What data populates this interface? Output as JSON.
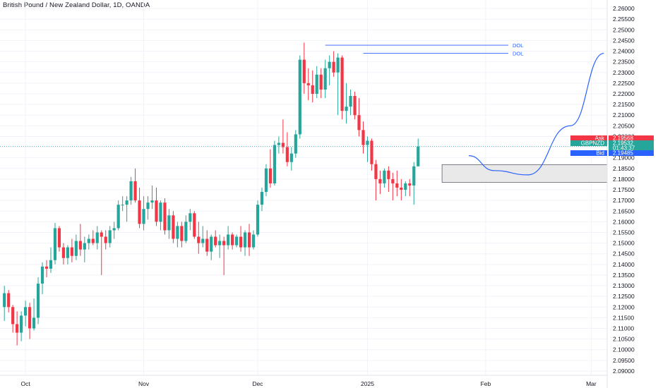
{
  "header": {
    "title": "British Pound / New Zealand Dollar, 1D, OANDA"
  },
  "colors": {
    "up": "#26a69a",
    "down": "#f23645",
    "line": "#2962ff",
    "grid": "#f0f3fa",
    "zone_fill": "#e9e9ea",
    "zone_stroke": "#5d606b",
    "price_line": "#26a69a"
  },
  "annotations": {
    "dol_1": {
      "label": "DOL",
      "price": 2.2428
    },
    "dol_2": {
      "label": "DOL",
      "price": 2.239
    },
    "zone": {
      "top": 2.1868,
      "bottom": 2.1785
    },
    "projection_label": "curve down then up"
  },
  "price_tags": {
    "ask": {
      "label": "Ask",
      "value": "2.19568"
    },
    "symbol": {
      "label": "GBPNZD",
      "value": "2.19532"
    },
    "countdown": {
      "value": "01:43:37"
    },
    "bid": {
      "label": "Bid",
      "value": "2.19485"
    }
  },
  "chart_data": {
    "type": "candlestick",
    "title": "British Pound / New Zealand Dollar, 1D, OANDA",
    "y_axis": {
      "ylim": [
        2.088,
        2.264
      ],
      "ticks": [
        "2.26000",
        "2.25500",
        "2.25000",
        "2.24500",
        "2.24000",
        "2.23500",
        "2.23000",
        "2.22500",
        "2.22000",
        "2.21500",
        "2.21000",
        "2.20500",
        "2.20000",
        "2.19500",
        "2.19000",
        "2.18500",
        "2.18000",
        "2.17500",
        "2.17000",
        "2.16500",
        "2.16000",
        "2.15500",
        "2.15000",
        "2.14500",
        "2.14000",
        "2.13500",
        "2.13000",
        "2.12500",
        "2.12000",
        "2.11500",
        "2.11000",
        "2.10500",
        "2.10000",
        "2.09500",
        "2.09000"
      ]
    },
    "x_axis": {
      "labels": [
        {
          "text": "Oct",
          "index": 5
        },
        {
          "text": "Nov",
          "index": 33
        },
        {
          "text": "Dec",
          "index": 60
        },
        {
          "text": "2025",
          "index": 86
        },
        {
          "text": "Feb",
          "index": 114
        },
        {
          "text": "Mar",
          "index": 139
        }
      ]
    },
    "last_price": 2.19532,
    "candles": [
      [
        2.12,
        2.13,
        2.1135,
        2.1265
      ],
      [
        2.1265,
        2.128,
        2.1175,
        2.12
      ],
      [
        2.12,
        2.121,
        2.108,
        2.112
      ],
      [
        2.112,
        2.118,
        2.102,
        2.108
      ],
      [
        2.108,
        2.118,
        2.104,
        2.116
      ],
      [
        2.116,
        2.123,
        2.111,
        2.12
      ],
      [
        2.12,
        2.122,
        2.105,
        2.11
      ],
      [
        2.11,
        2.124,
        2.109,
        2.115
      ],
      [
        2.115,
        2.134,
        2.112,
        2.131
      ],
      [
        2.131,
        2.141,
        2.126,
        2.139
      ],
      [
        2.139,
        2.142,
        2.134,
        2.138
      ],
      [
        2.138,
        2.148,
        2.136,
        2.142
      ],
      [
        2.142,
        2.1595,
        2.14,
        2.157
      ],
      [
        2.157,
        2.158,
        2.146,
        2.148
      ],
      [
        2.148,
        2.15,
        2.14,
        2.143
      ],
      [
        2.143,
        2.149,
        2.14,
        2.148
      ],
      [
        2.148,
        2.152,
        2.141,
        2.144
      ],
      [
        2.144,
        2.154,
        2.142,
        2.151
      ],
      [
        2.151,
        2.159,
        2.144,
        2.147
      ],
      [
        2.147,
        2.153,
        2.141,
        2.15
      ],
      [
        2.15,
        2.154,
        2.147,
        2.152
      ],
      [
        2.152,
        2.156,
        2.149,
        2.15
      ],
      [
        2.15,
        2.158,
        2.147,
        2.155
      ],
      [
        2.155,
        2.156,
        2.135,
        2.153
      ],
      [
        2.153,
        2.156,
        2.147,
        2.15
      ],
      [
        2.15,
        2.158,
        2.148,
        2.156
      ],
      [
        2.156,
        2.16,
        2.152,
        2.157
      ],
      [
        2.157,
        2.17,
        2.156,
        2.168
      ],
      [
        2.168,
        2.172,
        2.165,
        2.168
      ],
      [
        2.168,
        2.172,
        2.16,
        2.17
      ],
      [
        2.17,
        2.181,
        2.168,
        2.179
      ],
      [
        2.179,
        2.185,
        2.169,
        2.17
      ],
      [
        2.17,
        2.176,
        2.157,
        2.159
      ],
      [
        2.159,
        2.172,
        2.156,
        2.166
      ],
      [
        2.166,
        2.172,
        2.161,
        2.169
      ],
      [
        2.169,
        2.177,
        2.166,
        2.17
      ],
      [
        2.17,
        2.176,
        2.158,
        2.16
      ],
      [
        2.16,
        2.17,
        2.156,
        2.169
      ],
      [
        2.169,
        2.171,
        2.154,
        2.156
      ],
      [
        2.156,
        2.166,
        2.152,
        2.163
      ],
      [
        2.163,
        2.165,
        2.15,
        2.152
      ],
      [
        2.152,
        2.16,
        2.148,
        2.158
      ],
      [
        2.158,
        2.16,
        2.148,
        2.151
      ],
      [
        2.151,
        2.163,
        2.15,
        2.16
      ],
      [
        2.16,
        2.166,
        2.156,
        2.164
      ],
      [
        2.164,
        2.165,
        2.152,
        2.153
      ],
      [
        2.153,
        2.16,
        2.145,
        2.15
      ],
      [
        2.15,
        2.158,
        2.148,
        2.152
      ],
      [
        2.152,
        2.156,
        2.144,
        2.146
      ],
      [
        2.146,
        2.154,
        2.142,
        2.153
      ],
      [
        2.153,
        2.156,
        2.148,
        2.149
      ],
      [
        2.149,
        2.154,
        2.143,
        2.151
      ],
      [
        2.151,
        2.153,
        2.135,
        2.149
      ],
      [
        2.149,
        2.158,
        2.147,
        2.154
      ],
      [
        2.154,
        2.155,
        2.147,
        2.149
      ],
      [
        2.149,
        2.154,
        2.148,
        2.153
      ],
      [
        2.153,
        2.158,
        2.146,
        2.148
      ],
      [
        2.148,
        2.156,
        2.144,
        2.155
      ],
      [
        2.155,
        2.159,
        2.144,
        2.148
      ],
      [
        2.148,
        2.156,
        2.147,
        2.154
      ],
      [
        2.154,
        2.17,
        2.153,
        2.168
      ],
      [
        2.168,
        2.176,
        2.165,
        2.174
      ],
      [
        2.174,
        2.187,
        2.172,
        2.185
      ],
      [
        2.185,
        2.194,
        2.176,
        2.178
      ],
      [
        2.178,
        2.198,
        2.177,
        2.196
      ],
      [
        2.196,
        2.2,
        2.192,
        2.197
      ],
      [
        2.197,
        2.208,
        2.192,
        2.195
      ],
      [
        2.195,
        2.202,
        2.186,
        2.188
      ],
      [
        2.188,
        2.195,
        2.184,
        2.192
      ],
      [
        2.192,
        2.203,
        2.19,
        2.201
      ],
      [
        2.201,
        2.238,
        2.199,
        2.236
      ],
      [
        2.236,
        2.244,
        2.22,
        2.225
      ],
      [
        2.225,
        2.232,
        2.217,
        2.224
      ],
      [
        2.224,
        2.231,
        2.216,
        2.22
      ],
      [
        2.22,
        2.233,
        2.218,
        2.229
      ],
      [
        2.229,
        2.232,
        2.218,
        2.222
      ],
      [
        2.222,
        2.236,
        2.218,
        2.232
      ],
      [
        2.232,
        2.238,
        2.224,
        2.235
      ],
      [
        2.235,
        2.24,
        2.228,
        2.23
      ],
      [
        2.23,
        2.239,
        2.21,
        2.237
      ],
      [
        2.237,
        2.238,
        2.208,
        2.212
      ],
      [
        2.212,
        2.225,
        2.206,
        2.214
      ],
      [
        2.214,
        2.222,
        2.21,
        2.219
      ],
      [
        2.219,
        2.221,
        2.208,
        2.21
      ],
      [
        2.21,
        2.218,
        2.2,
        2.203
      ],
      [
        2.203,
        2.207,
        2.192,
        2.196
      ],
      [
        2.196,
        2.2,
        2.188,
        2.198
      ],
      [
        2.198,
        2.199,
        2.184,
        2.187
      ],
      [
        2.187,
        2.189,
        2.17,
        2.18
      ],
      [
        2.18,
        2.184,
        2.173,
        2.178
      ],
      [
        2.178,
        2.185,
        2.176,
        2.184
      ],
      [
        2.184,
        2.186,
        2.174,
        2.18
      ],
      [
        2.18,
        2.183,
        2.17,
        2.178
      ],
      [
        2.178,
        2.184,
        2.172,
        2.176
      ],
      [
        2.176,
        2.18,
        2.17,
        2.175
      ],
      [
        2.175,
        2.179,
        2.172,
        2.178
      ],
      [
        2.178,
        2.18,
        2.172,
        2.177
      ],
      [
        2.177,
        2.188,
        2.168,
        2.186
      ],
      [
        2.186,
        2.199,
        2.186,
        2.1953
      ]
    ],
    "projection": {
      "points": [
        [
          110,
          2.191
        ],
        [
          116,
          2.184
        ],
        [
          124,
          2.182
        ],
        [
          134,
          2.205
        ],
        [
          142,
          2.239
        ]
      ]
    }
  }
}
